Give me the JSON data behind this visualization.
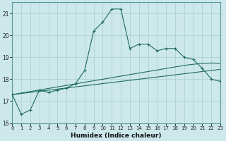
{
  "xlabel": "Humidex (Indice chaleur)",
  "xlim": [
    0,
    23
  ],
  "ylim": [
    16,
    21.5
  ],
  "yticks": [
    16,
    17,
    18,
    19,
    20,
    21
  ],
  "xticks": [
    0,
    1,
    2,
    3,
    4,
    5,
    6,
    7,
    8,
    9,
    10,
    11,
    12,
    13,
    14,
    15,
    16,
    17,
    18,
    19,
    20,
    21,
    22,
    23
  ],
  "background_color": "#cce8ea",
  "grid_color": "#aacccc",
  "line_color": "#1f6b5e",
  "series_main": [
    17.3,
    16.4,
    16.6,
    17.5,
    17.4,
    17.5,
    17.6,
    17.8,
    18.4,
    20.2,
    20.6,
    21.2,
    21.2,
    19.4,
    19.6,
    19.6,
    19.3,
    19.4,
    19.4,
    19.0,
    18.9,
    18.5,
    18.0,
    17.9
  ],
  "series_smooth1": [
    17.3,
    17.35,
    17.4,
    17.45,
    17.5,
    17.55,
    17.6,
    17.65,
    17.7,
    17.75,
    17.8,
    17.85,
    17.9,
    17.95,
    18.0,
    18.05,
    18.1,
    18.15,
    18.2,
    18.25,
    18.3,
    18.35,
    18.4,
    18.45
  ],
  "series_smooth2": [
    17.3,
    17.37,
    17.44,
    17.51,
    17.58,
    17.65,
    17.72,
    17.79,
    17.86,
    17.93,
    18.0,
    18.07,
    18.14,
    18.21,
    18.28,
    18.35,
    18.42,
    18.49,
    18.56,
    18.63,
    18.68,
    18.72,
    18.74,
    18.72
  ]
}
